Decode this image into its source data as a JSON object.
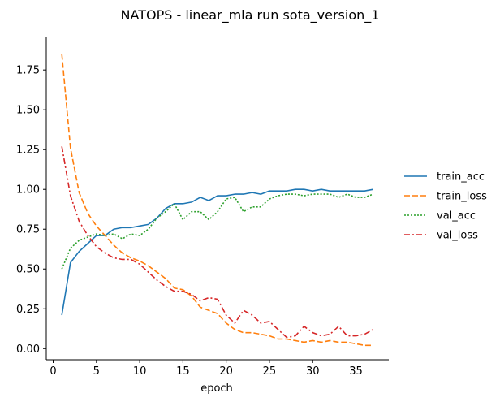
{
  "chart_data": {
    "type": "line",
    "title": "NATOPS - linear_mla run sota_version_1",
    "xlabel": "epoch",
    "ylabel": "",
    "xlim": [
      -0.8,
      38.8
    ],
    "ylim": [
      -0.07,
      1.96
    ],
    "xticks": [
      0,
      5,
      10,
      15,
      20,
      25,
      30,
      35
    ],
    "yticks": [
      0.0,
      0.25,
      0.5,
      0.75,
      1.0,
      1.25,
      1.5,
      1.75
    ],
    "xtick_labels": [
      "0",
      "5",
      "10",
      "15",
      "20",
      "25",
      "30",
      "35"
    ],
    "ytick_labels": [
      "0.00",
      "0.25",
      "0.50",
      "0.75",
      "1.00",
      "1.25",
      "1.50",
      "1.75"
    ],
    "grid": false,
    "legend_position": "right",
    "x": [
      1,
      2,
      3,
      4,
      5,
      6,
      7,
      8,
      9,
      10,
      11,
      12,
      13,
      14,
      15,
      16,
      17,
      18,
      19,
      20,
      21,
      22,
      23,
      24,
      25,
      26,
      27,
      28,
      29,
      30,
      31,
      32,
      33,
      34,
      35,
      36,
      37
    ],
    "series": [
      {
        "name": "train_acc",
        "color": "#1f77b4",
        "dash": "solid",
        "values": [
          0.21,
          0.54,
          0.61,
          0.66,
          0.71,
          0.71,
          0.75,
          0.76,
          0.76,
          0.77,
          0.78,
          0.82,
          0.88,
          0.91,
          0.91,
          0.92,
          0.95,
          0.93,
          0.96,
          0.96,
          0.97,
          0.97,
          0.98,
          0.97,
          0.99,
          0.99,
          0.99,
          1.0,
          1.0,
          0.99,
          1.0,
          0.99,
          0.99,
          0.99,
          0.99,
          0.99,
          1.0
        ]
      },
      {
        "name": "train_loss",
        "color": "#ff7f0e",
        "dash": "dashed",
        "values": [
          1.85,
          1.26,
          0.98,
          0.85,
          0.77,
          0.71,
          0.65,
          0.6,
          0.57,
          0.55,
          0.52,
          0.48,
          0.44,
          0.38,
          0.37,
          0.33,
          0.26,
          0.24,
          0.22,
          0.16,
          0.12,
          0.1,
          0.1,
          0.09,
          0.08,
          0.06,
          0.06,
          0.05,
          0.04,
          0.05,
          0.04,
          0.05,
          0.04,
          0.04,
          0.03,
          0.02,
          0.02
        ]
      },
      {
        "name": "val_acc",
        "color": "#2ca02c",
        "dash": "dotted",
        "values": [
          0.5,
          0.63,
          0.68,
          0.7,
          0.72,
          0.71,
          0.72,
          0.69,
          0.72,
          0.71,
          0.75,
          0.82,
          0.86,
          0.91,
          0.81,
          0.86,
          0.86,
          0.81,
          0.86,
          0.94,
          0.95,
          0.86,
          0.89,
          0.89,
          0.94,
          0.96,
          0.97,
          0.97,
          0.96,
          0.97,
          0.97,
          0.97,
          0.95,
          0.97,
          0.95,
          0.95,
          0.97
        ]
      },
      {
        "name": "val_loss",
        "color": "#d62728",
        "dash": "dashdot",
        "values": [
          1.27,
          0.96,
          0.8,
          0.71,
          0.64,
          0.6,
          0.57,
          0.56,
          0.56,
          0.53,
          0.48,
          0.43,
          0.39,
          0.36,
          0.36,
          0.34,
          0.3,
          0.32,
          0.31,
          0.21,
          0.16,
          0.24,
          0.21,
          0.16,
          0.17,
          0.12,
          0.07,
          0.08,
          0.14,
          0.1,
          0.08,
          0.09,
          0.14,
          0.08,
          0.08,
          0.09,
          0.12
        ]
      }
    ]
  }
}
